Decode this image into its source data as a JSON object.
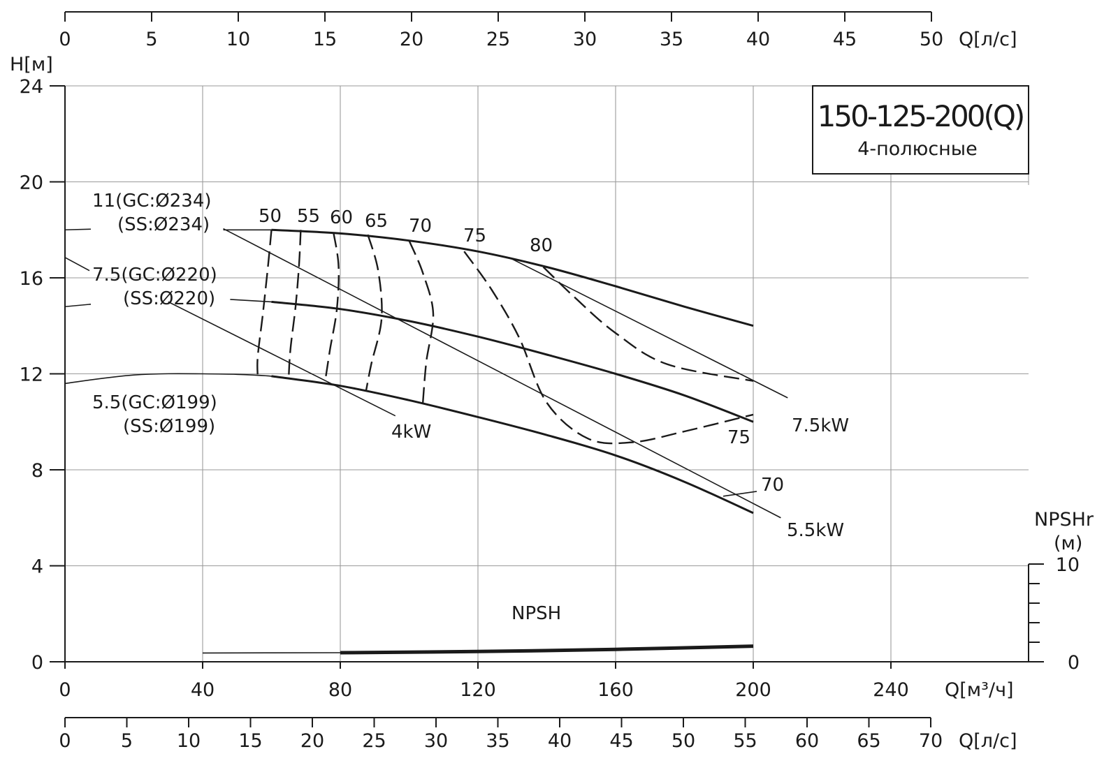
{
  "chart_data": {
    "type": "line",
    "title": "150-125-200(Q)",
    "subtitle": "4-полюсные",
    "y_axis": {
      "label": "H[м]",
      "ticks": [
        0,
        4,
        8,
        12,
        16,
        20,
        24
      ],
      "range": [
        0,
        24
      ]
    },
    "x_axis": {
      "label": "Q[м³/ч]",
      "ticks": [
        0,
        40,
        80,
        120,
        160,
        200,
        240
      ],
      "range": [
        0,
        280
      ]
    },
    "top_axis": {
      "label": "Q[л/с]",
      "ticks": [
        0,
        5,
        10,
        15,
        20,
        25,
        30,
        35,
        40,
        45,
        50
      ]
    },
    "bottom_axis": {
      "label": "Q[л/с]",
      "ticks": [
        0,
        5,
        10,
        15,
        20,
        25,
        30,
        35,
        40,
        45,
        50,
        55,
        60,
        65,
        70
      ]
    },
    "npsh_axis": {
      "label_line1": "NPSHr",
      "label_line2": "(м)",
      "ticks": [
        0,
        10
      ]
    },
    "grid": true,
    "head_curves": [
      {
        "label_line1": "11(GC:Ø234)",
        "label_line2": "(SS:Ø234)",
        "points": [
          [
            46,
            18.0
          ],
          [
            60,
            18.0
          ],
          [
            80,
            17.85
          ],
          [
            100,
            17.55
          ],
          [
            120,
            17.1
          ],
          [
            140,
            16.45
          ],
          [
            160,
            15.65
          ],
          [
            180,
            14.8
          ],
          [
            200,
            14.0
          ]
        ]
      },
      {
        "label_line1": "7.5(GC:Ø220)",
        "label_line2": "(SS:Ø220)",
        "points": [
          [
            48,
            15.1
          ],
          [
            60,
            15.0
          ],
          [
            80,
            14.7
          ],
          [
            100,
            14.2
          ],
          [
            120,
            13.55
          ],
          [
            140,
            12.8
          ],
          [
            160,
            12.0
          ],
          [
            180,
            11.1
          ],
          [
            200,
            10.0
          ]
        ]
      },
      {
        "label_line1": "5.5(GC:Ø199)",
        "label_line2": "(SS:Ø199)",
        "points": [
          [
            0,
            11.6
          ],
          [
            20,
            11.95
          ],
          [
            40,
            12.0
          ],
          [
            60,
            11.9
          ],
          [
            80,
            11.5
          ],
          [
            100,
            10.9
          ],
          [
            120,
            10.2
          ],
          [
            140,
            9.45
          ],
          [
            160,
            8.6
          ],
          [
            180,
            7.5
          ],
          [
            200,
            6.2
          ]
        ]
      }
    ],
    "power_lines": [
      {
        "label": "7.5kW",
        "from": [
          129,
          16.85
        ],
        "to": [
          210,
          11.0
        ]
      },
      {
        "label": "5.5kW",
        "from": [
          46,
          18.05
        ],
        "to": [
          208,
          6.0
        ]
      },
      {
        "label": "4kW",
        "from": [
          30,
          15.0
        ],
        "to": [
          96,
          10.25
        ]
      }
    ],
    "efficiency_labels": [
      "50",
      "55",
      "60",
      "65",
      "70",
      "75",
      "80"
    ],
    "efficiency_curves": [
      {
        "eff": 50,
        "points": [
          [
            60,
            18.0
          ],
          [
            59,
            16.5
          ],
          [
            57.5,
            14.5
          ],
          [
            56,
            12.7
          ],
          [
            56,
            11.9
          ]
        ]
      },
      {
        "eff": 55,
        "points": [
          [
            68.5,
            18.0
          ],
          [
            68,
            16.5
          ],
          [
            67,
            14.8
          ],
          [
            65.5,
            13.0
          ],
          [
            65,
            11.8
          ]
        ]
      },
      {
        "eff": 60,
        "points": [
          [
            78,
            17.9
          ],
          [
            79.5,
            16.5
          ],
          [
            79,
            14.7
          ],
          [
            77,
            13.0
          ],
          [
            75.5,
            11.6
          ]
        ]
      },
      {
        "eff": 65,
        "points": [
          [
            88,
            17.8
          ],
          [
            91,
            16.3
          ],
          [
            92,
            14.3
          ],
          [
            89,
            12.4
          ],
          [
            87.5,
            11.3
          ]
        ]
      },
      {
        "eff": 70,
        "points": [
          [
            100,
            17.55
          ],
          [
            104,
            16.2
          ],
          [
            107,
            14.5
          ],
          [
            105,
            12.5
          ],
          [
            104,
            10.8
          ]
        ]
      },
      {
        "eff": 75,
        "points": [
          [
            116,
            17.1
          ],
          [
            124,
            15.5
          ],
          [
            132,
            13.5
          ],
          [
            140,
            10.8
          ],
          [
            152,
            9.3
          ],
          [
            165,
            9.15
          ],
          [
            180,
            9.6
          ],
          [
            200,
            10.3
          ]
        ]
      },
      {
        "eff": 80,
        "points": [
          [
            139,
            16.45
          ],
          [
            148,
            15.2
          ],
          [
            160,
            13.7
          ],
          [
            175,
            12.4
          ],
          [
            200,
            11.7
          ]
        ]
      }
    ],
    "extra_labels": [
      "75",
      "70"
    ],
    "npsh": {
      "label": "NPSH",
      "points": [
        [
          40,
          0.9
        ],
        [
          80,
          0.93
        ],
        [
          120,
          1.05
        ],
        [
          160,
          1.27
        ],
        [
          200,
          1.6
        ]
      ]
    }
  }
}
